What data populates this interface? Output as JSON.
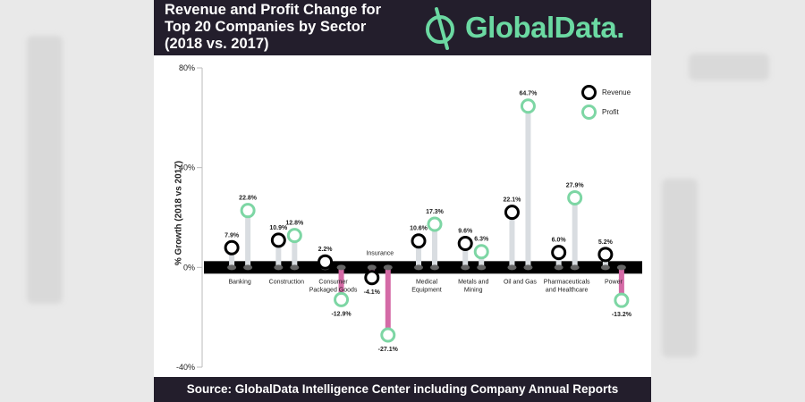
{
  "header": {
    "title": "Revenue and Profit Change for\nTop 20 Companies by Sector\n(2018 vs. 2017)",
    "logo_text": "GlobalData."
  },
  "footer": {
    "source": "Source: GlobalData Intelligence Center including Company Annual Reports"
  },
  "colors": {
    "revenue": "#000000",
    "profit": "#7dd6a4",
    "positive_bar": "#d9dde1",
    "negative_bar": "#d46aa6",
    "header_bg": "#231e2c",
    "logo_green": "#6bd9a2"
  },
  "icons": {
    "logo": "globaldata-logo-icon"
  },
  "chart_data": {
    "type": "dot-bar",
    "title": "Revenue and Profit Change for Top 20 Companies by Sector (2018 vs. 2017)",
    "ylabel": "% Growth (2018 vs 2017)",
    "ylim": [
      -40,
      80
    ],
    "yticks": [
      "80%",
      "40%",
      "0%",
      "-40%"
    ],
    "ytick_values": [
      80,
      40,
      0,
      -40
    ],
    "legend_placement": "top-right",
    "categories": [
      "Banking",
      "Construction",
      "Consumer\nPackaged Goods",
      "Insurance",
      "Medical\nEquipment",
      "Metals and\nMining",
      "Oil and Gas",
      "Pharmaceuticals\nand Healthcare",
      "Power"
    ],
    "category_label_side": [
      "below",
      "below",
      "below",
      "above",
      "below",
      "below",
      "below",
      "below",
      "below"
    ],
    "series": [
      {
        "name": "Revenue",
        "values": [
          7.9,
          10.9,
          2.2,
          -4.1,
          10.6,
          9.6,
          22.1,
          6.0,
          5.2
        ],
        "labels": [
          "7.9%",
          "10.9%",
          "2.2%",
          "-4.1%",
          "10.6%",
          "9.6%",
          "22.1%",
          "6.0%",
          "5.2%"
        ]
      },
      {
        "name": "Profit",
        "values": [
          22.8,
          12.8,
          -12.9,
          -27.1,
          17.3,
          6.3,
          64.7,
          27.9,
          -13.2
        ],
        "labels": [
          "22.8%",
          "12.8%",
          "-12.9%",
          "-27.1%",
          "17.3%",
          "6.3%",
          "64.7%",
          "27.9%",
          "-13.2%"
        ]
      }
    ]
  }
}
